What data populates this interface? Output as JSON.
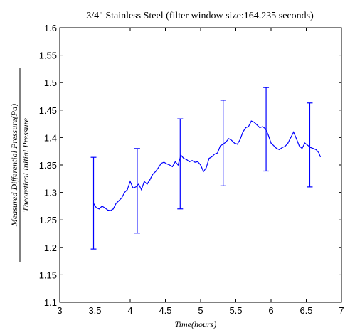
{
  "chart_data": {
    "type": "line",
    "title": "3/4\" Stainless Steel (filter window size:164.235 seconds)",
    "xlabel": "Time(hours)",
    "ylabel_numerator": "Measured Differential Pressure(Pa)",
    "ylabel_denominator": "Theoretical Initial Pressure",
    "xlim": [
      3,
      7
    ],
    "ylim": [
      1.1,
      1.6
    ],
    "x_ticks": [
      "3",
      "3.5",
      "4",
      "4.5",
      "5",
      "5.5",
      "6",
      "6.5",
      "7"
    ],
    "y_ticks": [
      "1.1",
      "1.15",
      "1.2",
      "1.25",
      "1.3",
      "1.35",
      "1.4",
      "1.45",
      "1.5",
      "1.55",
      "1.6"
    ],
    "grid": false,
    "line_color": "#0000ff",
    "series": [
      {
        "x": [
          3.48,
          3.52,
          3.56,
          3.6,
          3.64,
          3.68,
          3.72,
          3.76,
          3.8,
          3.84,
          3.88,
          3.92,
          3.96,
          4.0,
          4.04,
          4.08,
          4.12,
          4.16,
          4.2,
          4.24,
          4.28,
          4.32,
          4.36,
          4.4,
          4.44,
          4.48,
          4.52,
          4.56,
          4.6,
          4.64,
          4.68,
          4.72,
          4.76,
          4.8,
          4.84,
          4.88,
          4.92,
          4.96,
          5.0,
          5.04,
          5.08,
          5.12,
          5.16,
          5.2,
          5.24,
          5.28,
          5.32,
          5.36,
          5.4,
          5.44,
          5.48,
          5.52,
          5.56,
          5.6,
          5.64,
          5.68,
          5.72,
          5.76,
          5.8,
          5.84,
          5.88,
          5.92,
          5.96,
          6.0,
          6.04,
          6.08,
          6.12,
          6.16,
          6.2,
          6.24,
          6.28,
          6.32,
          6.36,
          6.4,
          6.44,
          6.48,
          6.52,
          6.56,
          6.6,
          6.64,
          6.68,
          6.7
        ],
        "y": [
          1.28,
          1.272,
          1.27,
          1.275,
          1.272,
          1.268,
          1.267,
          1.27,
          1.28,
          1.285,
          1.29,
          1.3,
          1.305,
          1.32,
          1.308,
          1.31,
          1.315,
          1.305,
          1.32,
          1.315,
          1.323,
          1.333,
          1.338,
          1.345,
          1.353,
          1.355,
          1.352,
          1.35,
          1.347,
          1.356,
          1.35,
          1.368,
          1.362,
          1.36,
          1.356,
          1.358,
          1.355,
          1.356,
          1.35,
          1.338,
          1.345,
          1.362,
          1.365,
          1.37,
          1.372,
          1.385,
          1.388,
          1.392,
          1.398,
          1.395,
          1.39,
          1.388,
          1.396,
          1.41,
          1.418,
          1.42,
          1.43,
          1.428,
          1.423,
          1.418,
          1.42,
          1.416,
          1.405,
          1.39,
          1.385,
          1.38,
          1.378,
          1.382,
          1.384,
          1.39,
          1.4,
          1.41,
          1.398,
          1.385,
          1.38,
          1.39,
          1.386,
          1.382,
          1.38,
          1.378,
          1.372,
          1.365
        ]
      }
    ],
    "error_bars": [
      {
        "x": 3.48,
        "lower": 1.197,
        "upper": 1.364
      },
      {
        "x": 4.1,
        "lower": 1.226,
        "upper": 1.38
      },
      {
        "x": 4.71,
        "lower": 1.27,
        "upper": 1.434
      },
      {
        "x": 5.32,
        "lower": 1.312,
        "upper": 1.468
      },
      {
        "x": 5.93,
        "lower": 1.339,
        "upper": 1.491
      },
      {
        "x": 6.55,
        "lower": 1.31,
        "upper": 1.463
      }
    ]
  }
}
